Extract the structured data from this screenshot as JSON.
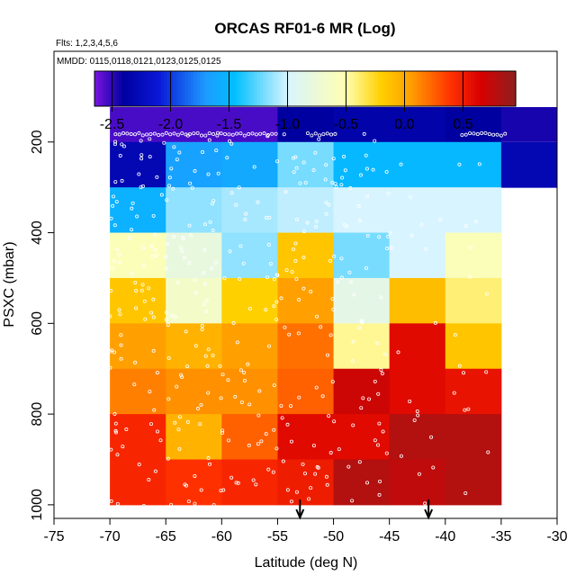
{
  "chart_data": {
    "type": "heatmap",
    "title": "ORCAS RF01-6 MR (Log)",
    "flights_note": "Flts: 1,2,3,4,5,6",
    "dates_note": "MMDD: 0115,0118,0121,0123,0125,0125",
    "xlabel": "Latitude (deg N)",
    "ylabel": "PSXC (mbar)",
    "xlim": [
      -75,
      -30
    ],
    "ylim": [
      1030,
      0
    ],
    "x_ticks": [
      -75,
      -70,
      -65,
      -60,
      -55,
      -50,
      -45,
      -40,
      -35,
      -30
    ],
    "x_tick_labels": [
      "-75",
      "-70",
      "-65",
      "-60",
      "-55",
      "-50",
      "-45",
      "-40",
      "-35",
      "-30"
    ],
    "y_ticks": [
      200,
      400,
      600,
      800,
      1000
    ],
    "y_tick_labels": [
      "200",
      "400",
      "600",
      "800",
      "1000"
    ],
    "colorbar": {
      "range": [
        -2.65,
        0.95
      ],
      "ticks": [
        -2.5,
        -2.0,
        -1.5,
        -1.0,
        -0.5,
        0.0,
        0.5
      ],
      "tick_labels": [
        "-2.5",
        "-2.0",
        "-1.5",
        "-1.0",
        "-0.5",
        "0.0",
        "0.5"
      ],
      "colors": [
        "#7a14e0",
        "#0000a0",
        "#0a18d8",
        "#1e9bff",
        "#00bfff",
        "#d8f4ff",
        "#ffffb0",
        "#ffd000",
        "#ffa000",
        "#ff3000",
        "#d80000",
        "#8e2020"
      ],
      "color_stops": [
        -2.65,
        -2.4,
        -2.1,
        -1.7,
        -1.45,
        -1.0,
        -0.5,
        -0.2,
        0.05,
        0.4,
        0.65,
        0.95
      ]
    },
    "lat_bins": [
      -70,
      -65,
      -60,
      -55,
      -50,
      -45,
      -40,
      -35
    ],
    "pressure_bins": [
      100,
      200,
      300,
      400,
      500,
      600,
      700,
      800,
      900,
      1000
    ],
    "cell_values": [
      [
        -2.55,
        -2.55,
        -2.55,
        -2.4,
        -2.35,
        -2.35,
        -2.4,
        null
      ],
      [
        -2.3,
        -1.65,
        -1.6,
        -1.2,
        -1.5,
        -1.5,
        -1.5,
        -2.3
      ],
      [
        -1.55,
        -1.15,
        -1.1,
        -1.05,
        -1.0,
        -1.0,
        -1.0,
        null
      ],
      [
        -0.55,
        -0.8,
        -1.15,
        -0.15,
        -1.2,
        -1.0,
        -0.55,
        null
      ],
      [
        -0.15,
        -0.65,
        -0.2,
        0.05,
        -0.85,
        -0.1,
        -0.4,
        null
      ],
      [
        0.05,
        -0.05,
        0.05,
        0.2,
        -0.45,
        0.6,
        -0.15,
        null
      ],
      [
        0.15,
        0.1,
        0.1,
        0.25,
        0.7,
        0.6,
        0.55,
        null
      ],
      [
        0.45,
        -0.05,
        0.25,
        0.6,
        0.6,
        0.8,
        0.8,
        null
      ],
      [
        0.45,
        0.4,
        0.45,
        0.5,
        0.8,
        0.75,
        0.8,
        null
      ]
    ],
    "flight_dots_seed": 7,
    "arrows_lat": [
      -53,
      -41.5
    ]
  }
}
